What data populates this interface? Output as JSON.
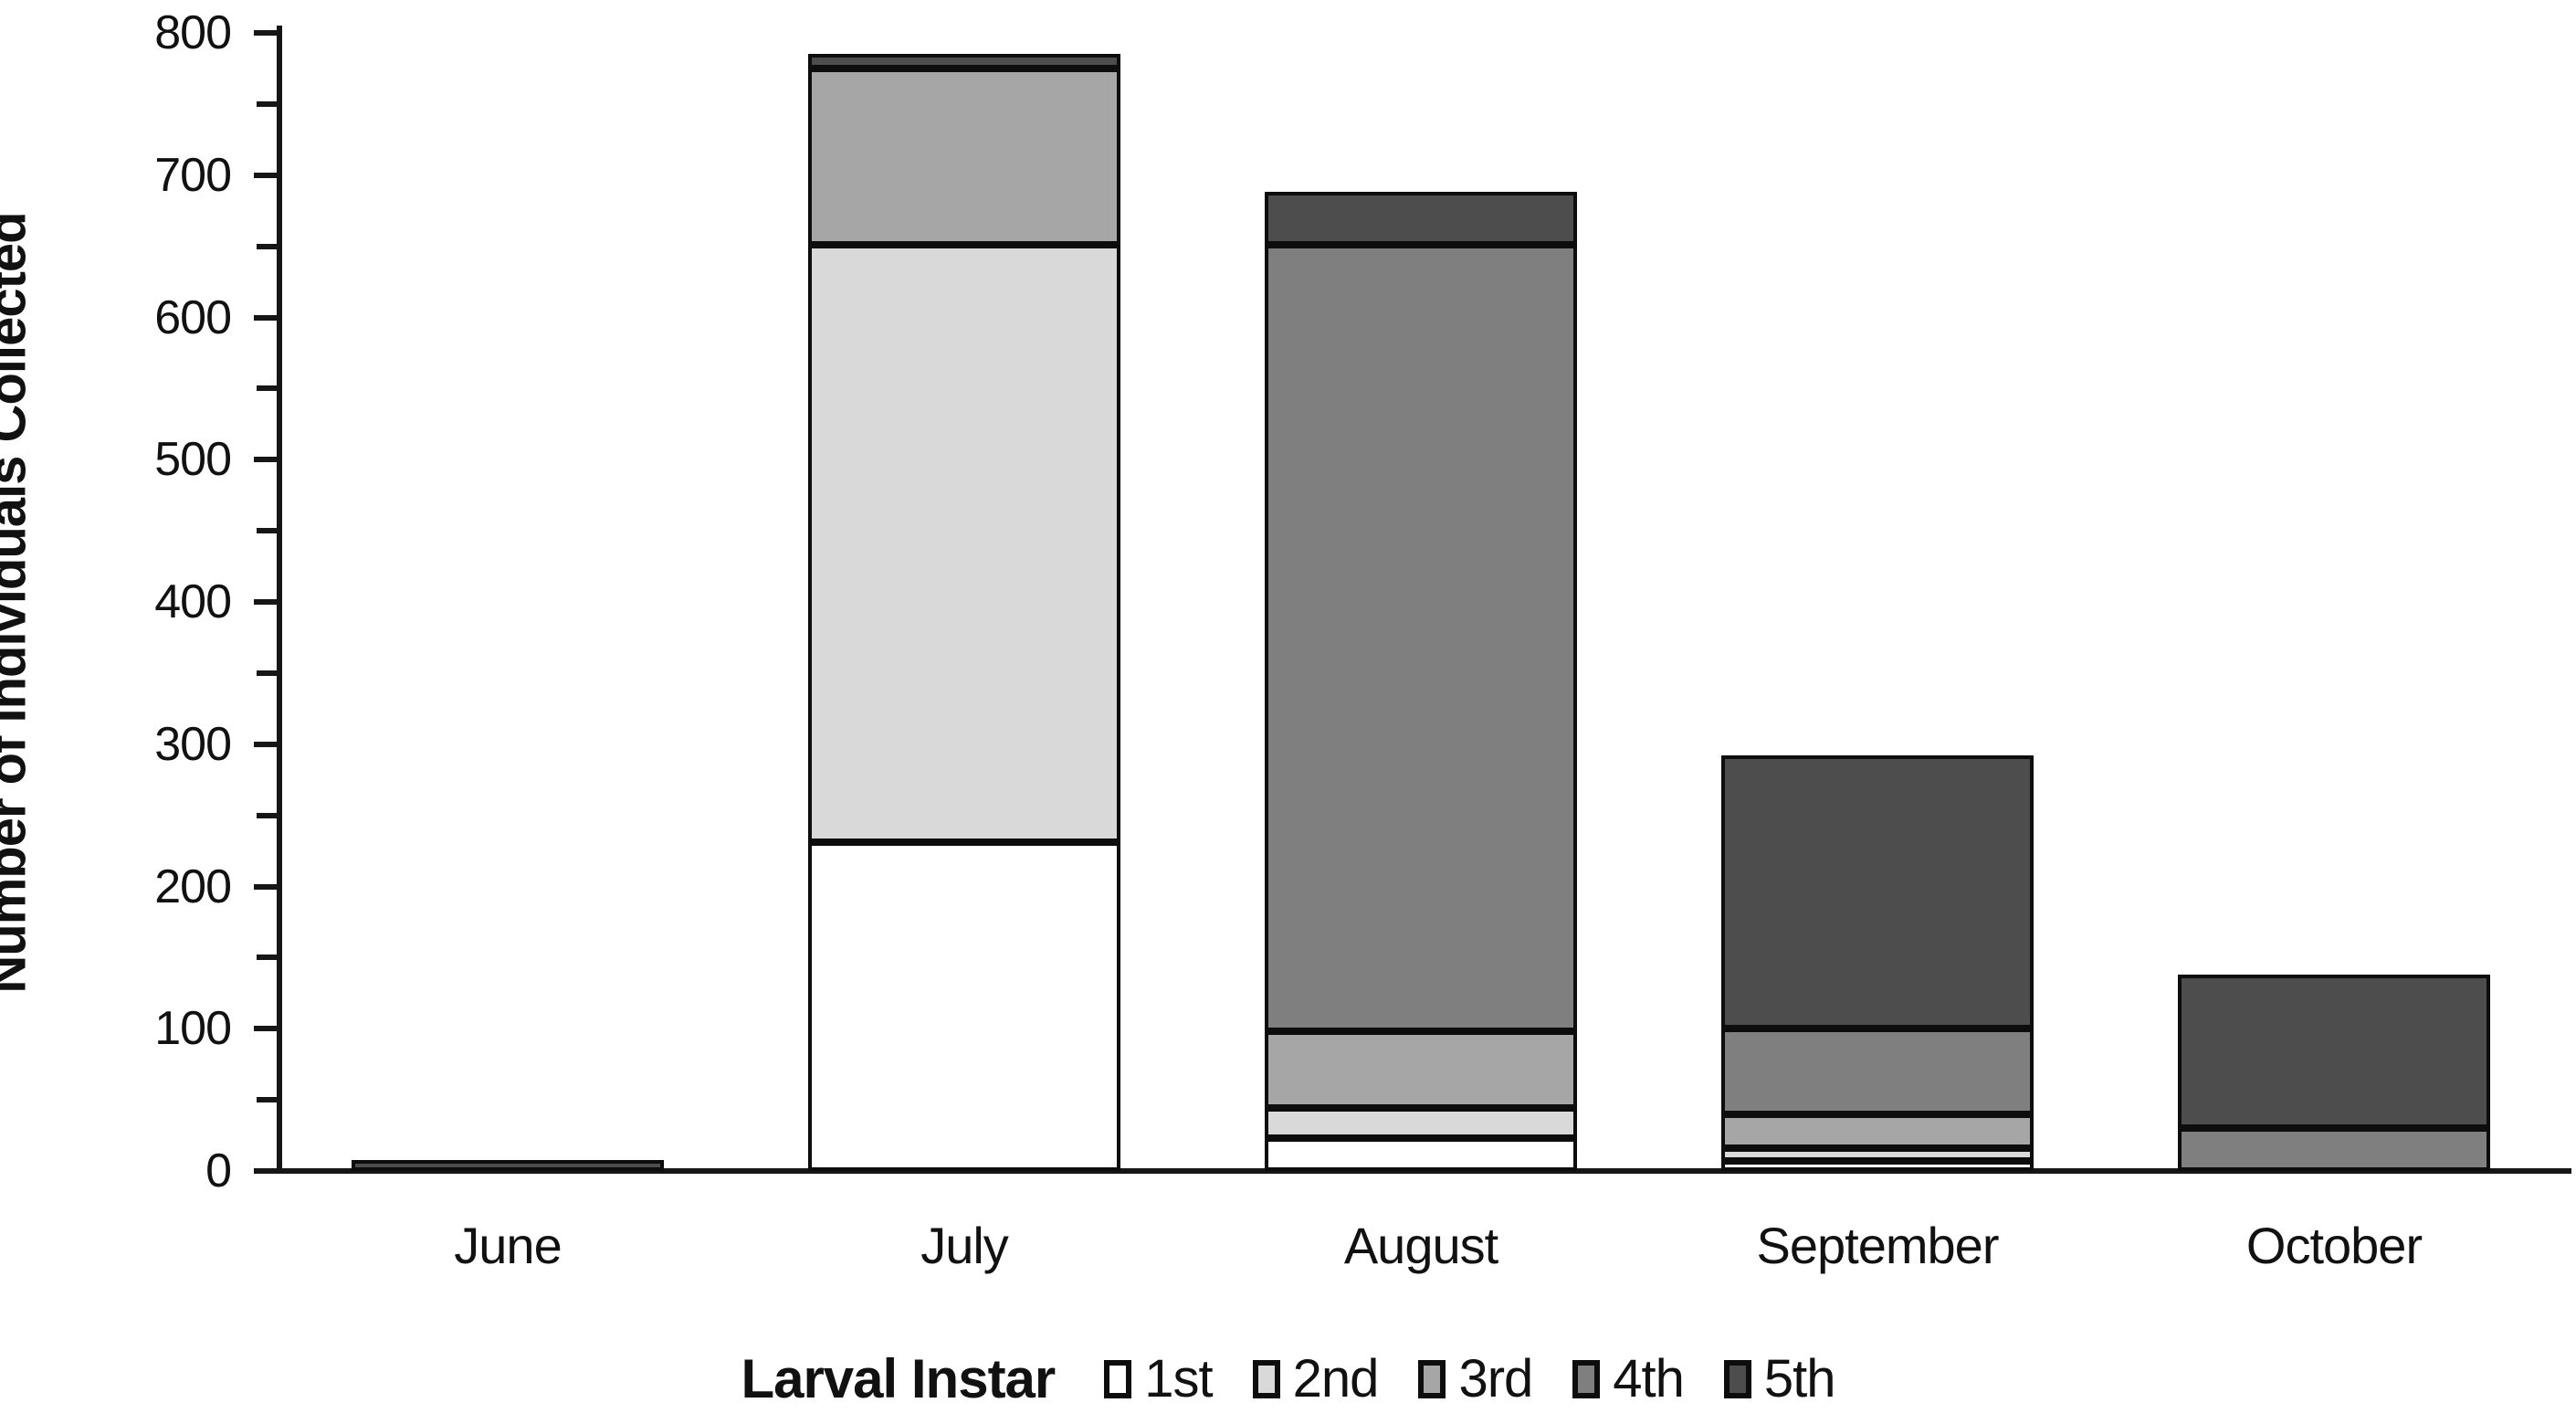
{
  "figure": {
    "background": "#ffffff",
    "axis_color": "#161616",
    "segment_border_color": "#0d0d0d"
  },
  "chart_data": {
    "type": "bar",
    "stacked": true,
    "title": "",
    "categories": [
      "June",
      "July",
      "August",
      "September",
      "October"
    ],
    "series": [
      {
        "name": "1st",
        "color": "#ffffff",
        "values": [
          0,
          231,
          23,
          7,
          0
        ]
      },
      {
        "name": "2nd",
        "color": "#d9d9d9",
        "values": [
          0,
          420,
          21,
          9,
          0
        ]
      },
      {
        "name": "3rd",
        "color": "#a6a6a6",
        "values": [
          0,
          124,
          54,
          24,
          0
        ]
      },
      {
        "name": "4th",
        "color": "#7f7f7f",
        "values": [
          0,
          0,
          553,
          60,
          30
        ]
      },
      {
        "name": "5th",
        "color": "#4d4d4d",
        "values": [
          8,
          10,
          37,
          192,
          108
        ]
      }
    ],
    "totals": [
      8,
      785,
      688,
      292,
      138
    ],
    "xlabel": "",
    "ylabel": "Number of Individuals Collected",
    "ylim": [
      0,
      800
    ],
    "ytick_major": 100,
    "ytick_minor": 50,
    "ytick_labels": [
      "0",
      "100",
      "200",
      "300",
      "400",
      "500",
      "600",
      "700",
      "800"
    ],
    "grid": false,
    "legend_title": "Larval Instar",
    "legend_position": "bottom"
  }
}
